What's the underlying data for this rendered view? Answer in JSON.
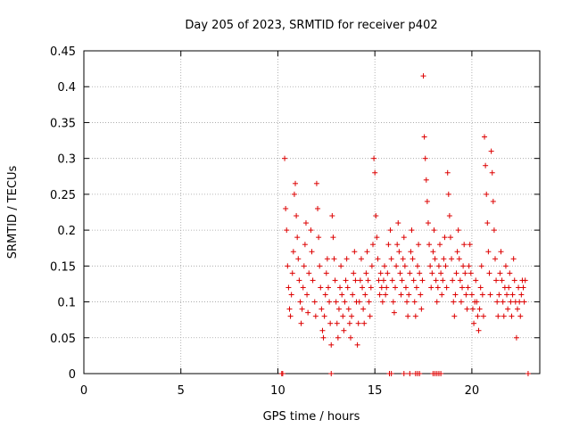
{
  "chart_data": {
    "type": "scatter",
    "title": "Day 205 of 2023, SRMTID for receiver p402",
    "xlabel": "GPS time / hours",
    "ylabel": "SRMTID / TECUs",
    "xlim": [
      0,
      23.5
    ],
    "ylim": [
      0,
      0.45
    ],
    "x_ticks": [
      0,
      5,
      10,
      15,
      20
    ],
    "y_ticks": [
      0,
      0.05,
      0.1,
      0.15,
      0.2,
      0.25,
      0.3,
      0.35,
      0.4,
      0.45
    ],
    "x_tick_labels": [
      "0",
      "5",
      "10",
      "15",
      "20"
    ],
    "y_tick_labels": [
      "0",
      "0.05",
      "0.1",
      "0.15",
      "0.2",
      "0.25",
      "0.3",
      "0.35",
      "0.4",
      "0.45"
    ],
    "grid": true,
    "marker": "+",
    "marker_color": "#dd0000",
    "series": [
      {
        "name": "SRMTID",
        "points": [
          [
            10.2,
            0.0
          ],
          [
            10.25,
            0.0
          ],
          [
            12.75,
            0.0
          ],
          [
            15.75,
            0.0
          ],
          [
            15.85,
            0.0
          ],
          [
            16.5,
            0.0
          ],
          [
            16.8,
            0.0
          ],
          [
            17.1,
            0.0
          ],
          [
            17.2,
            0.0
          ],
          [
            17.3,
            0.0
          ],
          [
            18.0,
            0.0
          ],
          [
            18.1,
            0.0
          ],
          [
            18.2,
            0.0
          ],
          [
            18.3,
            0.0
          ],
          [
            18.4,
            0.0
          ],
          [
            22.9,
            0.0
          ],
          [
            10.35,
            0.3
          ],
          [
            10.4,
            0.23
          ],
          [
            10.45,
            0.2
          ],
          [
            10.5,
            0.15
          ],
          [
            10.55,
            0.12
          ],
          [
            10.6,
            0.09
          ],
          [
            10.65,
            0.08
          ],
          [
            10.7,
            0.11
          ],
          [
            10.75,
            0.14
          ],
          [
            10.8,
            0.17
          ],
          [
            10.85,
            0.25
          ],
          [
            10.9,
            0.265
          ],
          [
            10.95,
            0.22
          ],
          [
            11.0,
            0.19
          ],
          [
            11.05,
            0.16
          ],
          [
            11.1,
            0.13
          ],
          [
            11.15,
            0.1
          ],
          [
            11.2,
            0.07
          ],
          [
            11.25,
            0.09
          ],
          [
            11.3,
            0.12
          ],
          [
            11.35,
            0.15
          ],
          [
            11.4,
            0.18
          ],
          [
            11.45,
            0.21
          ],
          [
            11.5,
            0.11
          ],
          [
            11.55,
            0.085
          ],
          [
            11.6,
            0.14
          ],
          [
            11.7,
            0.2
          ],
          [
            11.75,
            0.17
          ],
          [
            11.8,
            0.13
          ],
          [
            11.9,
            0.1
          ],
          [
            11.95,
            0.08
          ],
          [
            12.0,
            0.265
          ],
          [
            12.05,
            0.23
          ],
          [
            12.1,
            0.19
          ],
          [
            12.15,
            0.15
          ],
          [
            12.2,
            0.12
          ],
          [
            12.25,
            0.09
          ],
          [
            12.3,
            0.06
          ],
          [
            12.35,
            0.05
          ],
          [
            12.4,
            0.08
          ],
          [
            12.45,
            0.11
          ],
          [
            12.5,
            0.14
          ],
          [
            12.55,
            0.16
          ],
          [
            12.6,
            0.12
          ],
          [
            12.65,
            0.1
          ],
          [
            12.7,
            0.07
          ],
          [
            12.75,
            0.04
          ],
          [
            12.8,
            0.22
          ],
          [
            12.85,
            0.19
          ],
          [
            12.9,
            0.16
          ],
          [
            12.95,
            0.13
          ],
          [
            13.0,
            0.1
          ],
          [
            13.05,
            0.07
          ],
          [
            13.1,
            0.05
          ],
          [
            13.15,
            0.09
          ],
          [
            13.2,
            0.12
          ],
          [
            13.25,
            0.15
          ],
          [
            13.3,
            0.11
          ],
          [
            13.35,
            0.08
          ],
          [
            13.4,
            0.06
          ],
          [
            13.45,
            0.1
          ],
          [
            13.5,
            0.13
          ],
          [
            13.55,
            0.16
          ],
          [
            13.6,
            0.12
          ],
          [
            13.65,
            0.09
          ],
          [
            13.7,
            0.07
          ],
          [
            13.75,
            0.05
          ],
          [
            13.8,
            0.08
          ],
          [
            13.85,
            0.11
          ],
          [
            13.9,
            0.14
          ],
          [
            13.95,
            0.17
          ],
          [
            14.0,
            0.13
          ],
          [
            14.05,
            0.1
          ],
          [
            14.1,
            0.04
          ],
          [
            14.15,
            0.07
          ],
          [
            14.2,
            0.1
          ],
          [
            14.25,
            0.13
          ],
          [
            14.3,
            0.16
          ],
          [
            14.35,
            0.12
          ],
          [
            14.4,
            0.09
          ],
          [
            14.45,
            0.07
          ],
          [
            14.5,
            0.11
          ],
          [
            14.55,
            0.14
          ],
          [
            14.6,
            0.17
          ],
          [
            14.65,
            0.13
          ],
          [
            14.7,
            0.1
          ],
          [
            14.75,
            0.08
          ],
          [
            14.8,
            0.12
          ],
          [
            14.85,
            0.15
          ],
          [
            14.9,
            0.18
          ],
          [
            14.95,
            0.3
          ],
          [
            15.0,
            0.28
          ],
          [
            15.05,
            0.22
          ],
          [
            15.1,
            0.19
          ],
          [
            15.15,
            0.16
          ],
          [
            15.2,
            0.13
          ],
          [
            15.25,
            0.11
          ],
          [
            15.3,
            0.14
          ],
          [
            15.35,
            0.12
          ],
          [
            15.4,
            0.1
          ],
          [
            15.45,
            0.13
          ],
          [
            15.5,
            0.15
          ],
          [
            15.55,
            0.11
          ],
          [
            15.6,
            0.12
          ],
          [
            15.65,
            0.14
          ],
          [
            15.7,
            0.18
          ],
          [
            15.8,
            0.2
          ],
          [
            15.85,
            0.16
          ],
          [
            15.9,
            0.13
          ],
          [
            15.95,
            0.1
          ],
          [
            16.0,
            0.085
          ],
          [
            16.05,
            0.12
          ],
          [
            16.1,
            0.15
          ],
          [
            16.15,
            0.18
          ],
          [
            16.2,
            0.21
          ],
          [
            16.25,
            0.17
          ],
          [
            16.3,
            0.14
          ],
          [
            16.35,
            0.11
          ],
          [
            16.4,
            0.13
          ],
          [
            16.45,
            0.16
          ],
          [
            16.5,
            0.19
          ],
          [
            16.55,
            0.15
          ],
          [
            16.6,
            0.12
          ],
          [
            16.65,
            0.1
          ],
          [
            16.7,
            0.08
          ],
          [
            16.75,
            0.11
          ],
          [
            16.8,
            0.14
          ],
          [
            16.85,
            0.17
          ],
          [
            16.9,
            0.2
          ],
          [
            16.95,
            0.16
          ],
          [
            17.0,
            0.13
          ],
          [
            17.05,
            0.1
          ],
          [
            17.1,
            0.08
          ],
          [
            17.15,
            0.12
          ],
          [
            17.2,
            0.15
          ],
          [
            17.25,
            0.18
          ],
          [
            17.3,
            0.14
          ],
          [
            17.35,
            0.11
          ],
          [
            17.4,
            0.09
          ],
          [
            17.45,
            0.13
          ],
          [
            17.5,
            0.415
          ],
          [
            17.55,
            0.33
          ],
          [
            17.6,
            0.3
          ],
          [
            17.65,
            0.27
          ],
          [
            17.7,
            0.24
          ],
          [
            17.75,
            0.21
          ],
          [
            17.8,
            0.18
          ],
          [
            17.85,
            0.15
          ],
          [
            17.9,
            0.12
          ],
          [
            17.95,
            0.14
          ],
          [
            18.0,
            0.17
          ],
          [
            18.05,
            0.2
          ],
          [
            18.1,
            0.16
          ],
          [
            18.15,
            0.13
          ],
          [
            18.2,
            0.1
          ],
          [
            18.25,
            0.12
          ],
          [
            18.3,
            0.15
          ],
          [
            18.35,
            0.18
          ],
          [
            18.4,
            0.14
          ],
          [
            18.45,
            0.11
          ],
          [
            18.5,
            0.13
          ],
          [
            18.55,
            0.16
          ],
          [
            18.6,
            0.19
          ],
          [
            18.65,
            0.15
          ],
          [
            18.7,
            0.12
          ],
          [
            18.75,
            0.28
          ],
          [
            18.8,
            0.25
          ],
          [
            18.85,
            0.22
          ],
          [
            18.9,
            0.19
          ],
          [
            18.95,
            0.16
          ],
          [
            19.0,
            0.13
          ],
          [
            19.05,
            0.1
          ],
          [
            19.1,
            0.08
          ],
          [
            19.15,
            0.11
          ],
          [
            19.2,
            0.14
          ],
          [
            19.25,
            0.17
          ],
          [
            19.3,
            0.2
          ],
          [
            19.35,
            0.16
          ],
          [
            19.4,
            0.13
          ],
          [
            19.45,
            0.1
          ],
          [
            19.5,
            0.12
          ],
          [
            19.55,
            0.15
          ],
          [
            19.6,
            0.18
          ],
          [
            19.65,
            0.14
          ],
          [
            19.7,
            0.11
          ],
          [
            19.75,
            0.09
          ],
          [
            19.8,
            0.12
          ],
          [
            19.85,
            0.15
          ],
          [
            19.9,
            0.18
          ],
          [
            19.95,
            0.14
          ],
          [
            20.0,
            0.11
          ],
          [
            20.05,
            0.09
          ],
          [
            20.1,
            0.07
          ],
          [
            20.15,
            0.1
          ],
          [
            20.2,
            0.13
          ],
          [
            20.25,
            0.1
          ],
          [
            20.3,
            0.08
          ],
          [
            20.35,
            0.06
          ],
          [
            20.4,
            0.09
          ],
          [
            20.45,
            0.12
          ],
          [
            20.5,
            0.15
          ],
          [
            20.55,
            0.11
          ],
          [
            20.6,
            0.08
          ],
          [
            20.65,
            0.33
          ],
          [
            20.7,
            0.29
          ],
          [
            20.75,
            0.25
          ],
          [
            20.8,
            0.21
          ],
          [
            20.85,
            0.17
          ],
          [
            20.9,
            0.14
          ],
          [
            20.95,
            0.11
          ],
          [
            21.0,
            0.31
          ],
          [
            21.05,
            0.28
          ],
          [
            21.1,
            0.24
          ],
          [
            21.15,
            0.2
          ],
          [
            21.2,
            0.16
          ],
          [
            21.25,
            0.13
          ],
          [
            21.3,
            0.1
          ],
          [
            21.35,
            0.08
          ],
          [
            21.4,
            0.11
          ],
          [
            21.45,
            0.14
          ],
          [
            21.5,
            0.17
          ],
          [
            21.55,
            0.13
          ],
          [
            21.6,
            0.1
          ],
          [
            21.65,
            0.08
          ],
          [
            21.7,
            0.12
          ],
          [
            21.75,
            0.15
          ],
          [
            21.8,
            0.11
          ],
          [
            21.85,
            0.09
          ],
          [
            21.9,
            0.12
          ],
          [
            21.95,
            0.14
          ],
          [
            22.0,
            0.1
          ],
          [
            22.05,
            0.08
          ],
          [
            22.1,
            0.11
          ],
          [
            22.15,
            0.16
          ],
          [
            22.2,
            0.13
          ],
          [
            22.25,
            0.1
          ],
          [
            22.3,
            0.05
          ],
          [
            22.35,
            0.09
          ],
          [
            22.4,
            0.12
          ],
          [
            22.45,
            0.1
          ],
          [
            22.5,
            0.08
          ],
          [
            22.55,
            0.11
          ],
          [
            22.6,
            0.13
          ],
          [
            22.65,
            0.12
          ],
          [
            22.7,
            0.1
          ],
          [
            22.75,
            0.13
          ]
        ]
      }
    ]
  }
}
